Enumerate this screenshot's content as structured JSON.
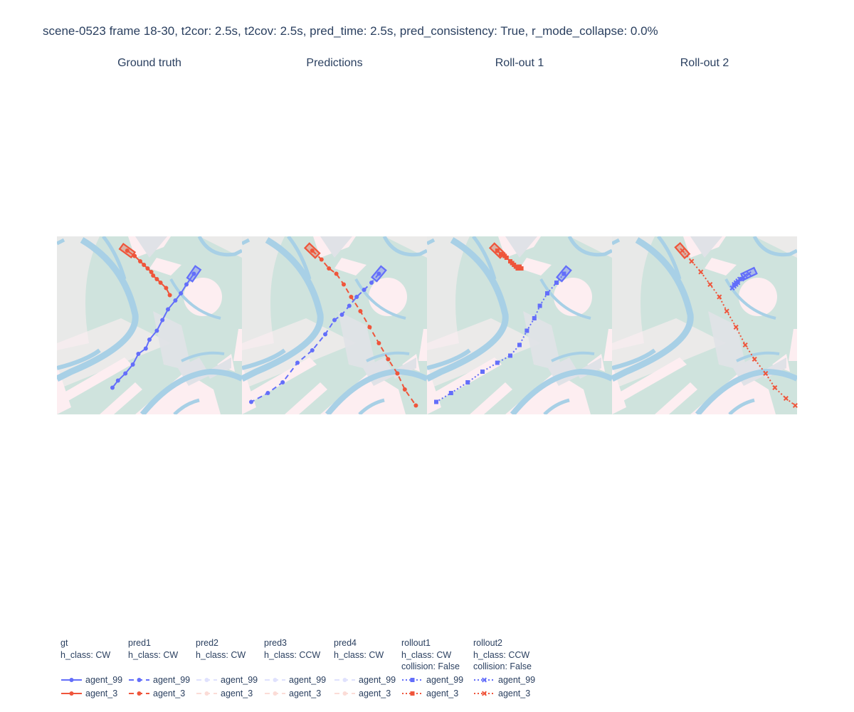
{
  "title": "scene-0523 frame 18-30, t2cor: 2.5s, t2cov: 2.5s, pred_time: 2.5s, pred_consistency: True, r_mode_collapse: 0.0%",
  "colors": {
    "agent_99": "#636efa",
    "agent_3": "#ef553b",
    "drivable": "#cfe3dd",
    "walkway": "#fdeef1",
    "lane_divider": "#a8d0e6",
    "crosswalk": "#e0e2e7"
  },
  "chart_data": [
    {
      "type": "scatter",
      "subplot_title": "Ground truth",
      "xlim": [
        0,
        100
      ],
      "ylim": [
        0,
        100
      ],
      "series": [
        {
          "name": "agent_99",
          "legendgroup": "gt",
          "mode": "lines+markers",
          "dash": "solid",
          "marker": "circle",
          "x": [
            74,
            70,
            67,
            64,
            60,
            57,
            54,
            50,
            48,
            44,
            41,
            37,
            33,
            30
          ],
          "y": [
            79,
            73,
            68,
            64,
            59,
            53,
            47,
            42,
            37,
            34,
            28,
            23,
            19,
            15
          ]
        },
        {
          "name": "agent_3",
          "legendgroup": "gt",
          "mode": "lines+markers",
          "dash": "solid",
          "marker": "circle",
          "x": [
            38,
            42,
            45,
            47,
            49,
            51,
            52,
            54,
            56,
            59,
            61
          ],
          "y": [
            92,
            89,
            86,
            84,
            82,
            80,
            78,
            76,
            74,
            71,
            67
          ]
        }
      ]
    },
    {
      "type": "scatter",
      "subplot_title": "Predictions",
      "xlim": [
        0,
        100
      ],
      "ylim": [
        0,
        100
      ],
      "series": [
        {
          "name": "agent_99",
          "legendgroup": "pred1",
          "mode": "lines+markers",
          "dash": "dash",
          "marker": "circle",
          "x": [
            74,
            70,
            66,
            62,
            58,
            54,
            50,
            45,
            38,
            30,
            22,
            14,
            5
          ],
          "y": [
            79,
            74,
            70,
            66,
            61,
            56,
            53,
            45,
            36,
            29,
            18,
            12,
            7
          ]
        },
        {
          "name": "agent_3",
          "legendgroup": "pred1",
          "mode": "lines+markers",
          "dash": "dash",
          "marker": "circle",
          "x": [
            38,
            43,
            47,
            51,
            55,
            59,
            64,
            69,
            74,
            79,
            84,
            88,
            94
          ],
          "y": [
            92,
            87,
            82,
            79,
            73,
            66,
            58,
            49,
            40,
            31,
            23,
            14,
            5
          ]
        }
      ]
    },
    {
      "type": "scatter",
      "subplot_title": "Roll-out 1",
      "xlim": [
        0,
        100
      ],
      "ylim": [
        0,
        100
      ],
      "series": [
        {
          "name": "agent_99",
          "legendgroup": "rollout1",
          "mode": "lines+markers",
          "dash": "dot",
          "marker": "square",
          "x": [
            74,
            70,
            65,
            61,
            58,
            54,
            50,
            45,
            38,
            30,
            22,
            13,
            5
          ],
          "y": [
            79,
            74,
            68,
            61,
            54,
            47,
            39,
            33,
            29,
            24,
            18,
            12,
            7
          ]
        },
        {
          "name": "agent_3",
          "legendgroup": "rollout1",
          "mode": "lines+markers",
          "dash": "dot",
          "marker": "square",
          "x": [
            38,
            40,
            42,
            43,
            45,
            46,
            47,
            48,
            49,
            49,
            50,
            50,
            51
          ],
          "y": [
            92,
            90,
            89,
            88,
            86,
            85,
            84,
            83,
            82,
            83,
            82,
            83,
            82
          ]
        }
      ]
    },
    {
      "type": "scatter",
      "subplot_title": "Roll-out 2",
      "xlim": [
        0,
        100
      ],
      "ylim": [
        0,
        100
      ],
      "series": [
        {
          "name": "agent_99",
          "legendgroup": "rollout2",
          "mode": "lines+markers",
          "dash": "dot",
          "marker": "x",
          "x": [
            74,
            72,
            71,
            70,
            69,
            68,
            68,
            67,
            67,
            66,
            66,
            65,
            65
          ],
          "y": [
            79,
            78,
            77,
            76,
            76,
            75,
            74,
            74,
            73,
            73,
            72,
            71,
            71
          ]
        },
        {
          "name": "agent_3",
          "legendgroup": "rollout2",
          "mode": "lines+markers",
          "dash": "dot",
          "marker": "x",
          "x": [
            38,
            43,
            48,
            53,
            58,
            62,
            67,
            72,
            77,
            83,
            88,
            94,
            99
          ],
          "y": [
            92,
            86,
            80,
            73,
            66,
            58,
            49,
            39,
            31,
            23,
            15,
            9,
            5
          ]
        }
      ]
    }
  ],
  "legend": {
    "groups": [
      {
        "id": "gt",
        "title": "gt",
        "lines": [
          "h_class: CW"
        ],
        "dash": "solid",
        "marker": "circle",
        "opacity": 1,
        "items": [
          "agent_99",
          "agent_3"
        ]
      },
      {
        "id": "pred1",
        "title": "pred1",
        "lines": [
          "h_class: CW"
        ],
        "dash": "dash",
        "marker": "circle",
        "opacity": 1,
        "items": [
          "agent_99",
          "agent_3"
        ]
      },
      {
        "id": "pred2",
        "title": "pred2",
        "lines": [
          "h_class: CW"
        ],
        "dash": "dash",
        "marker": "circle",
        "opacity": 0.2,
        "items": [
          "agent_99",
          "agent_3"
        ]
      },
      {
        "id": "pred3",
        "title": "pred3",
        "lines": [
          "h_class: CCW"
        ],
        "dash": "dash",
        "marker": "circle",
        "opacity": 0.2,
        "items": [
          "agent_99",
          "agent_3"
        ]
      },
      {
        "id": "pred4",
        "title": "pred4",
        "lines": [
          "h_class: CW"
        ],
        "dash": "dash",
        "marker": "circle",
        "opacity": 0.2,
        "items": [
          "agent_99",
          "agent_3"
        ]
      },
      {
        "id": "rollout1",
        "title": "rollout1",
        "lines": [
          "h_class: CW",
          "collision: False"
        ],
        "dash": "dot",
        "marker": "square",
        "opacity": 1,
        "items": [
          "agent_99",
          "agent_3"
        ]
      },
      {
        "id": "rollout2",
        "title": "rollout2",
        "lines": [
          "h_class: CCW",
          "collision: False"
        ],
        "dash": "dot",
        "marker": "x",
        "opacity": 1,
        "items": [
          "agent_99",
          "agent_3"
        ]
      }
    ]
  }
}
